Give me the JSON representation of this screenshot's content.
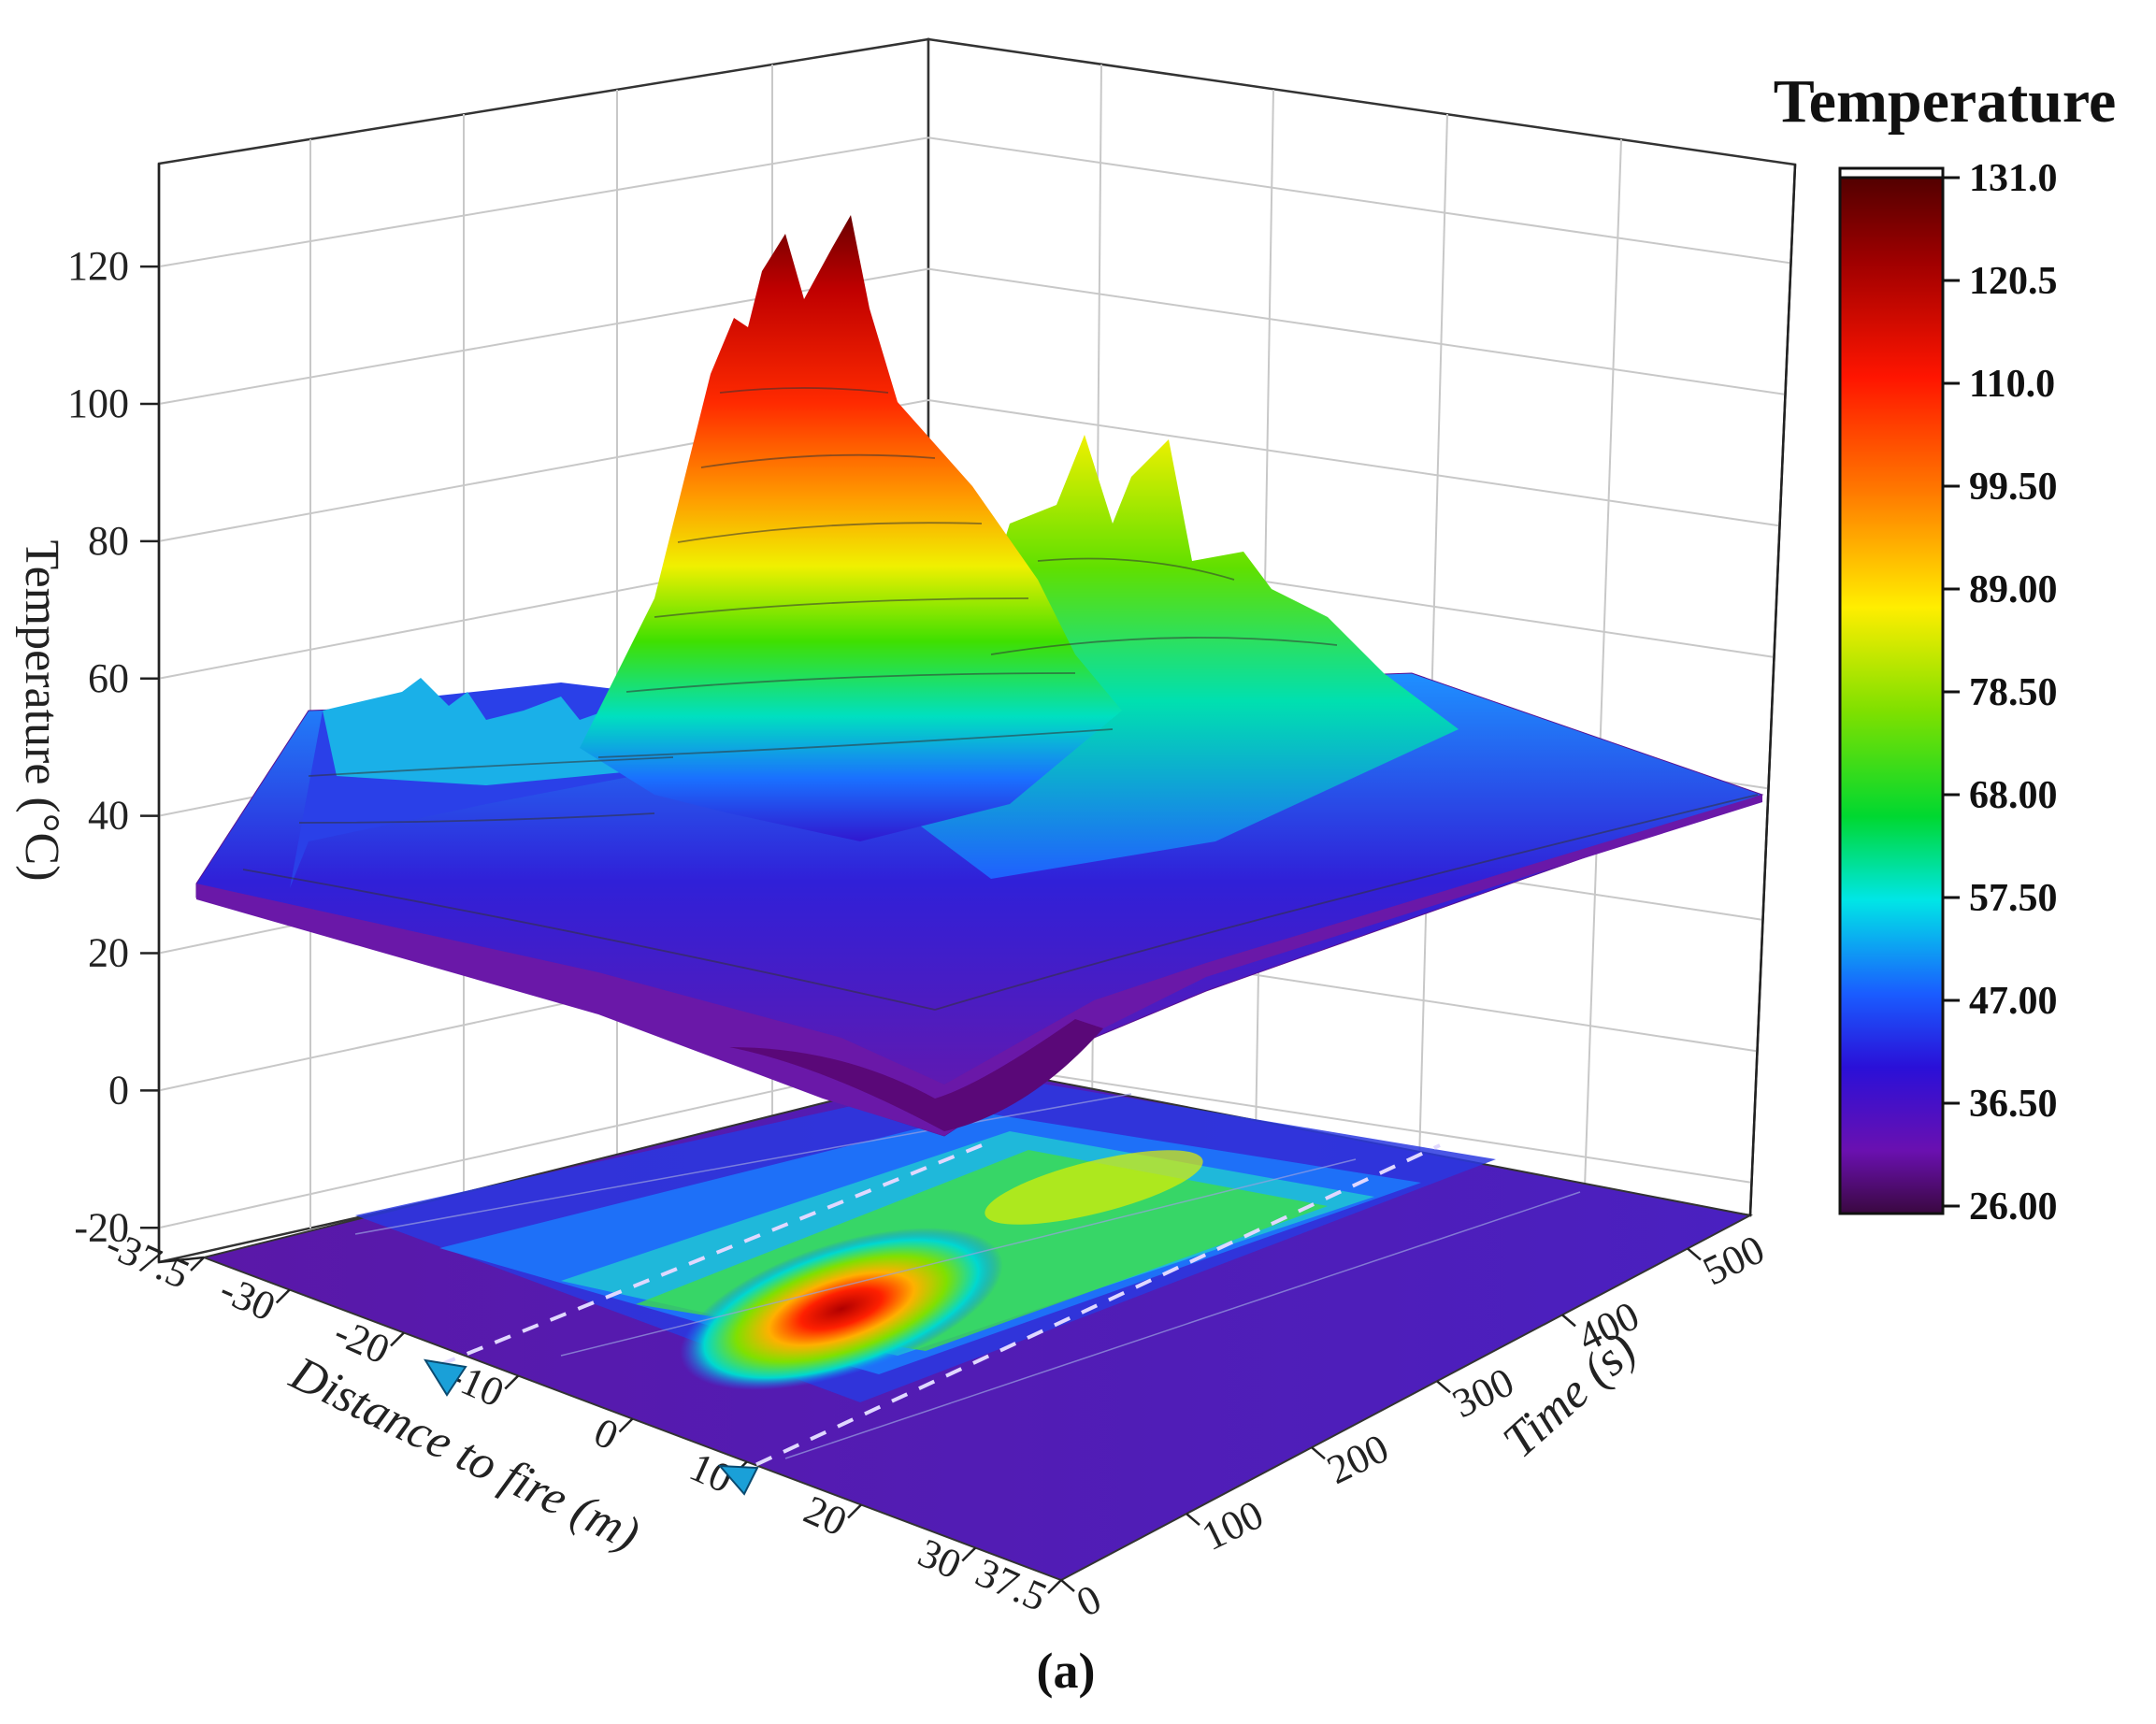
{
  "chart_data": {
    "type": "surface3d",
    "panel_label": "(a)",
    "xlabel": "Distance to fire (m)",
    "ylabel": "Time (s)",
    "zlabel": "Temperature (°C)",
    "x_ticks": [
      "-37.5",
      "-30",
      "-20",
      "-10",
      "0",
      "10",
      "20",
      "30",
      "37.5"
    ],
    "x_tick_values": [
      -37.5,
      -30,
      -20,
      -10,
      0,
      10,
      20,
      30,
      37.5
    ],
    "y_ticks": [
      "0",
      "100",
      "200",
      "300",
      "400",
      "500"
    ],
    "y_tick_values": [
      0,
      100,
      200,
      300,
      400,
      500
    ],
    "z_ticks": [
      "-20",
      "0",
      "20",
      "40",
      "60",
      "80",
      "100",
      "120"
    ],
    "z_tick_values": [
      -20,
      0,
      20,
      40,
      60,
      80,
      100,
      120
    ],
    "xlim": [
      -37.5,
      37.5
    ],
    "ylim": [
      0,
      550
    ],
    "zlim": [
      -25,
      135
    ],
    "legend": {
      "title": "Temperature",
      "placement": "right",
      "ticks": [
        "131.0",
        "120.5",
        "110.0",
        "99.50",
        "89.00",
        "78.50",
        "68.00",
        "57.50",
        "47.00",
        "36.50",
        "26.00"
      ],
      "tick_values": [
        131.0,
        120.5,
        110.0,
        99.5,
        89.0,
        78.5,
        68.0,
        57.5,
        47.0,
        36.5,
        26.0
      ],
      "colors": [
        "#5a0000",
        "#b00000",
        "#ff1a00",
        "#ff8a00",
        "#ffee00",
        "#a8f000",
        "#00d020",
        "#00e8e8",
        "#1060ff",
        "#2010d0",
        "#6a10b0",
        "#5a0a60"
      ]
    },
    "markers": [
      {
        "label": "",
        "x": -15,
        "y": 0
      },
      {
        "label": "",
        "x": 15,
        "y": 0
      }
    ],
    "dashed_lines_x": [
      -15,
      15
    ],
    "surface_description_points": [
      {
        "x": -37.5,
        "y": 0,
        "temp": 30
      },
      {
        "x": -30,
        "y": 150,
        "temp": 55
      },
      {
        "x": 0,
        "y": 250,
        "temp": 131
      },
      {
        "x": 5,
        "y": 300,
        "temp": 125
      },
      {
        "x": 10,
        "y": 450,
        "temp": 98
      },
      {
        "x": 15,
        "y": 480,
        "temp": 95
      },
      {
        "x": 20,
        "y": 500,
        "temp": 80
      },
      {
        "x": 37.5,
        "y": 550,
        "temp": 35
      }
    ],
    "grid": true
  }
}
